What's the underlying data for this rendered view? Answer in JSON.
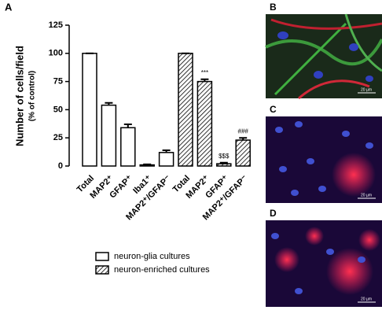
{
  "chart_data": {
    "type": "bar",
    "panel_label": "A",
    "ylabel": "Number of cells/field",
    "ylabel_sub": "(% of control)",
    "categories": [
      "Total",
      "MAP2⁺",
      "GFAP⁺",
      "Iba1⁺",
      "MAP2⁺/GFAP⁻",
      "Total",
      "MAP2⁺",
      "GFAP⁺",
      "MAP2⁺/GFAP⁻"
    ],
    "series": [
      {
        "name": "neuron-glia cultures",
        "color": "#ffffff",
        "hatch": false,
        "values": [
          100,
          54,
          34,
          1,
          12,
          null,
          null,
          null,
          null
        ],
        "errors": [
          0,
          2,
          3,
          0.5,
          2,
          null,
          null,
          null,
          null
        ]
      },
      {
        "name": "neuron-enriched cultures",
        "color": "#ffffff",
        "hatch": true,
        "values": [
          null,
          null,
          null,
          null,
          null,
          100,
          75,
          2,
          23
        ],
        "errors": [
          null,
          null,
          null,
          null,
          null,
          0,
          2,
          1,
          2
        ],
        "significance": [
          null,
          null,
          null,
          null,
          null,
          null,
          "***",
          "$$$",
          "###"
        ]
      }
    ],
    "ylim": [
      0,
      125
    ],
    "yticks": [
      0,
      25,
      50,
      75,
      100,
      125
    ]
  },
  "images": [
    {
      "label": "B",
      "scale": "20 µm"
    },
    {
      "label": "C",
      "scale": "20 µm"
    },
    {
      "label": "D",
      "scale": "20 µm"
    }
  ]
}
